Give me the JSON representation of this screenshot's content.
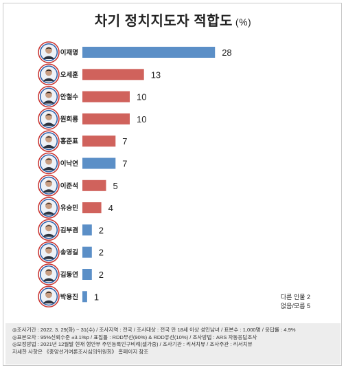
{
  "chart_data": {
    "type": "bar",
    "orientation": "horizontal",
    "title": "차기 정치지도자 적합도",
    "unit": "(%)",
    "categories": [
      "이재명",
      "오세훈",
      "안철수",
      "원희룡",
      "홍준표",
      "이낙연",
      "이준석",
      "유승민",
      "김부겸",
      "송영길",
      "김동연",
      "박용진"
    ],
    "values": [
      28,
      13,
      10,
      10,
      7,
      7,
      5,
      4,
      2,
      2,
      2,
      1
    ],
    "bar_colors": [
      "#5b8fc7",
      "#d0625c",
      "#d0625c",
      "#d0625c",
      "#d0625c",
      "#5b8fc7",
      "#d0625c",
      "#d0625c",
      "#5b8fc7",
      "#5b8fc7",
      "#5b8fc7",
      "#5b8fc7"
    ],
    "value_labels": [
      "28",
      "13",
      "10",
      "10",
      "7",
      "7",
      "5",
      "4",
      "2",
      "2",
      "2",
      "1"
    ],
    "grid": false,
    "legend": "none"
  },
  "colors": {
    "blue_party": "#5b8fc7",
    "red_party": "#d0625c",
    "avatar_ring": "#c9302c",
    "avatar_inner_ring": "#2b5ea8"
  },
  "side_note": {
    "line1": "다른 인물 2",
    "line2": "없음/모름 5"
  },
  "footer": {
    "lines": [
      "◎조사기간 : 2022. 3. 29(화) ~ 31(수) / 조사지역 : 전국 / 조사대상 : 전국 만 18세 이상 성인남녀 / 표본수 : 1,000명 / 응답률 : 4.9%",
      "◎표본오차 : 95%신뢰수준 ±3.1%p / 표집틀 : RDD무선(90%) & RDD유선(10%) / 조사방법 : ARS 자동응답조사",
      "◎보정방법 : 2021년 12월말 현재 행안부 주민등록인구비례(셀가중) / 조사기관 : 리서치뷰 / 조사주관 : 리서치뷰",
      "자세한 사항은 《중앙선거여론조사심의위원회》 홈페이지 참조"
    ]
  }
}
